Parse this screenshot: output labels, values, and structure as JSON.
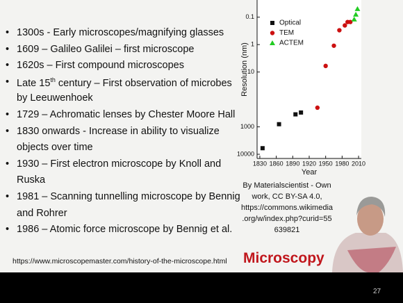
{
  "slide": {
    "bullets": [
      [
        "1300s - Early microscopes/magnifying glasses"
      ],
      [
        "1609 – Galileo Galilei – first microscope"
      ],
      [
        "1620s – First compound microscopes"
      ],
      [
        [
          "Late 15",
          "th",
          " century – First observation of microbes"
        ],
        "by Leeuwenhoek"
      ],
      [
        "1729 – Achromatic lenses by Chester Moore Hall"
      ],
      [
        "1830 onwards - Increase in ability to visualize",
        "objects over time"
      ],
      [
        "1930 – First electron microscope by Knoll and",
        "Ruska"
      ],
      [
        "1981 – Scanning tunnelling microscope by Bennig",
        "and Rohrer"
      ],
      [
        "1986 – Atomic force microscope by Bennig et al."
      ]
    ],
    "source": "https://www.microscopemaster.com/history-of-the-microscope.html",
    "caption": [
      "By Materialscientist - Own",
      "work, CC BY-SA 4.0,",
      "https://commons.wikimedia",
      ".org/w/index.php?curid=55",
      "639821"
    ],
    "heading": "Microscopy",
    "page_number": 27
  },
  "chart_data": {
    "type": "scatter",
    "xlabel": "Year",
    "ylabel": "Resolution (nm)",
    "xlim": [
      1825,
      2015
    ],
    "xticks": [
      1830,
      1860,
      1890,
      1920,
      1950,
      1980,
      2010
    ],
    "ylim": [
      10000,
      0.04
    ],
    "yticks": [
      0.1,
      1,
      10,
      1000,
      10000
    ],
    "ylog": true,
    "legend": "top-left",
    "series": [
      {
        "name": "Optical",
        "color": "#111111",
        "marker": "square",
        "x": [
          1835,
          1865,
          1895,
          1905
        ],
        "values": [
          6000,
          800,
          350,
          300
        ]
      },
      {
        "name": "TEM",
        "color": "#cc1111",
        "marker": "circle",
        "x": [
          1935,
          1950,
          1965,
          1975,
          1985,
          1990,
          1995
        ],
        "values": [
          200,
          6,
          1.1,
          0.3,
          0.2,
          0.15,
          0.15
        ]
      },
      {
        "name": "ACTEM",
        "color": "#22cc22",
        "marker": "triangle",
        "x": [
          2002,
          2005,
          2008
        ],
        "values": [
          0.12,
          0.08,
          0.05
        ]
      }
    ]
  }
}
